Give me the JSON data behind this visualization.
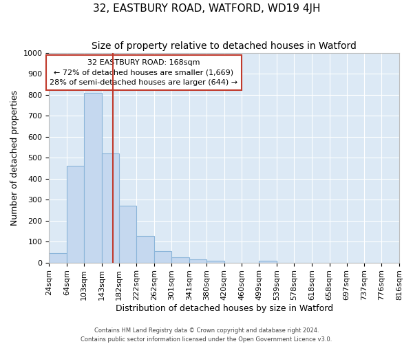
{
  "title": "32, EASTBURY ROAD, WATFORD, WD19 4JH",
  "subtitle": "Size of property relative to detached houses in Watford",
  "xlabel": "Distribution of detached houses by size in Watford",
  "ylabel": "Number of detached properties",
  "footer_line1": "Contains HM Land Registry data © Crown copyright and database right 2024.",
  "footer_line2": "Contains public sector information licensed under the Open Government Licence v3.0.",
  "annotation_line1": "32 EASTBURY ROAD: 168sqm",
  "annotation_line2": "← 72% of detached houses are smaller (1,669)",
  "annotation_line3": "28% of semi-detached houses are larger (644) →",
  "bar_edges": [
    24,
    64,
    103,
    143,
    182,
    222,
    262,
    301,
    341,
    380,
    420,
    460,
    499,
    539,
    578,
    618,
    658,
    697,
    737,
    776,
    816
  ],
  "bar_heights": [
    45,
    460,
    810,
    520,
    270,
    125,
    55,
    25,
    15,
    10,
    0,
    0,
    10,
    0,
    0,
    0,
    0,
    0,
    0,
    0
  ],
  "bar_color": "#c5d8ef",
  "bar_edge_color": "#8ab4d9",
  "vline_color": "#c0392b",
  "vline_x": 168,
  "annotation_box_color": "#c0392b",
  "background_color": "#dce9f5",
  "ylim": [
    0,
    1000
  ],
  "yticks": [
    0,
    100,
    200,
    300,
    400,
    500,
    600,
    700,
    800,
    900,
    1000
  ],
  "title_fontsize": 11,
  "subtitle_fontsize": 10,
  "xlabel_fontsize": 9,
  "ylabel_fontsize": 9,
  "annotation_fontsize": 8,
  "tick_fontsize": 8,
  "footer_fontsize": 6
}
